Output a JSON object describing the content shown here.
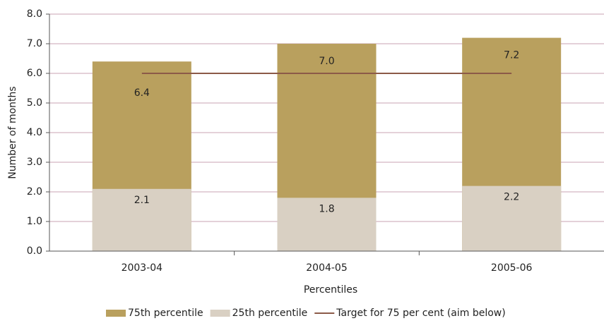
{
  "chart_data": {
    "type": "bar",
    "x_label": "Percentiles",
    "y_label": "Number of months",
    "categories": [
      "2003-04",
      "2004-05",
      "2005-06"
    ],
    "series": [
      {
        "name": "75th percentile",
        "color": "#b9a05e",
        "values": [
          6.4,
          7.0,
          7.2
        ],
        "value_labels": [
          "6.4",
          "7.0",
          "7.2"
        ]
      },
      {
        "name": "25th percentile",
        "color": "#d9d0c3",
        "values": [
          2.1,
          1.8,
          2.2
        ],
        "value_labels": [
          "2.1",
          "1.8",
          "2.2"
        ]
      },
      {
        "name": "Target for 75 per cent (aim below)",
        "color": "#8c5a48",
        "type": "line",
        "values": [
          6.0,
          6.0,
          6.0
        ]
      }
    ],
    "ylim": [
      0,
      8
    ],
    "yticks": [
      {
        "value": 0,
        "label": "0.0"
      },
      {
        "value": 1,
        "label": "1.0"
      },
      {
        "value": 2,
        "label": "2.0"
      },
      {
        "value": 3,
        "label": "3.0"
      },
      {
        "value": 4,
        "label": "4.0"
      },
      {
        "value": 5,
        "label": "5.0"
      },
      {
        "value": 6,
        "label": "6.0"
      },
      {
        "value": 7,
        "label": "7.0"
      },
      {
        "value": 8,
        "label": "8.0"
      }
    ],
    "grid": true
  }
}
